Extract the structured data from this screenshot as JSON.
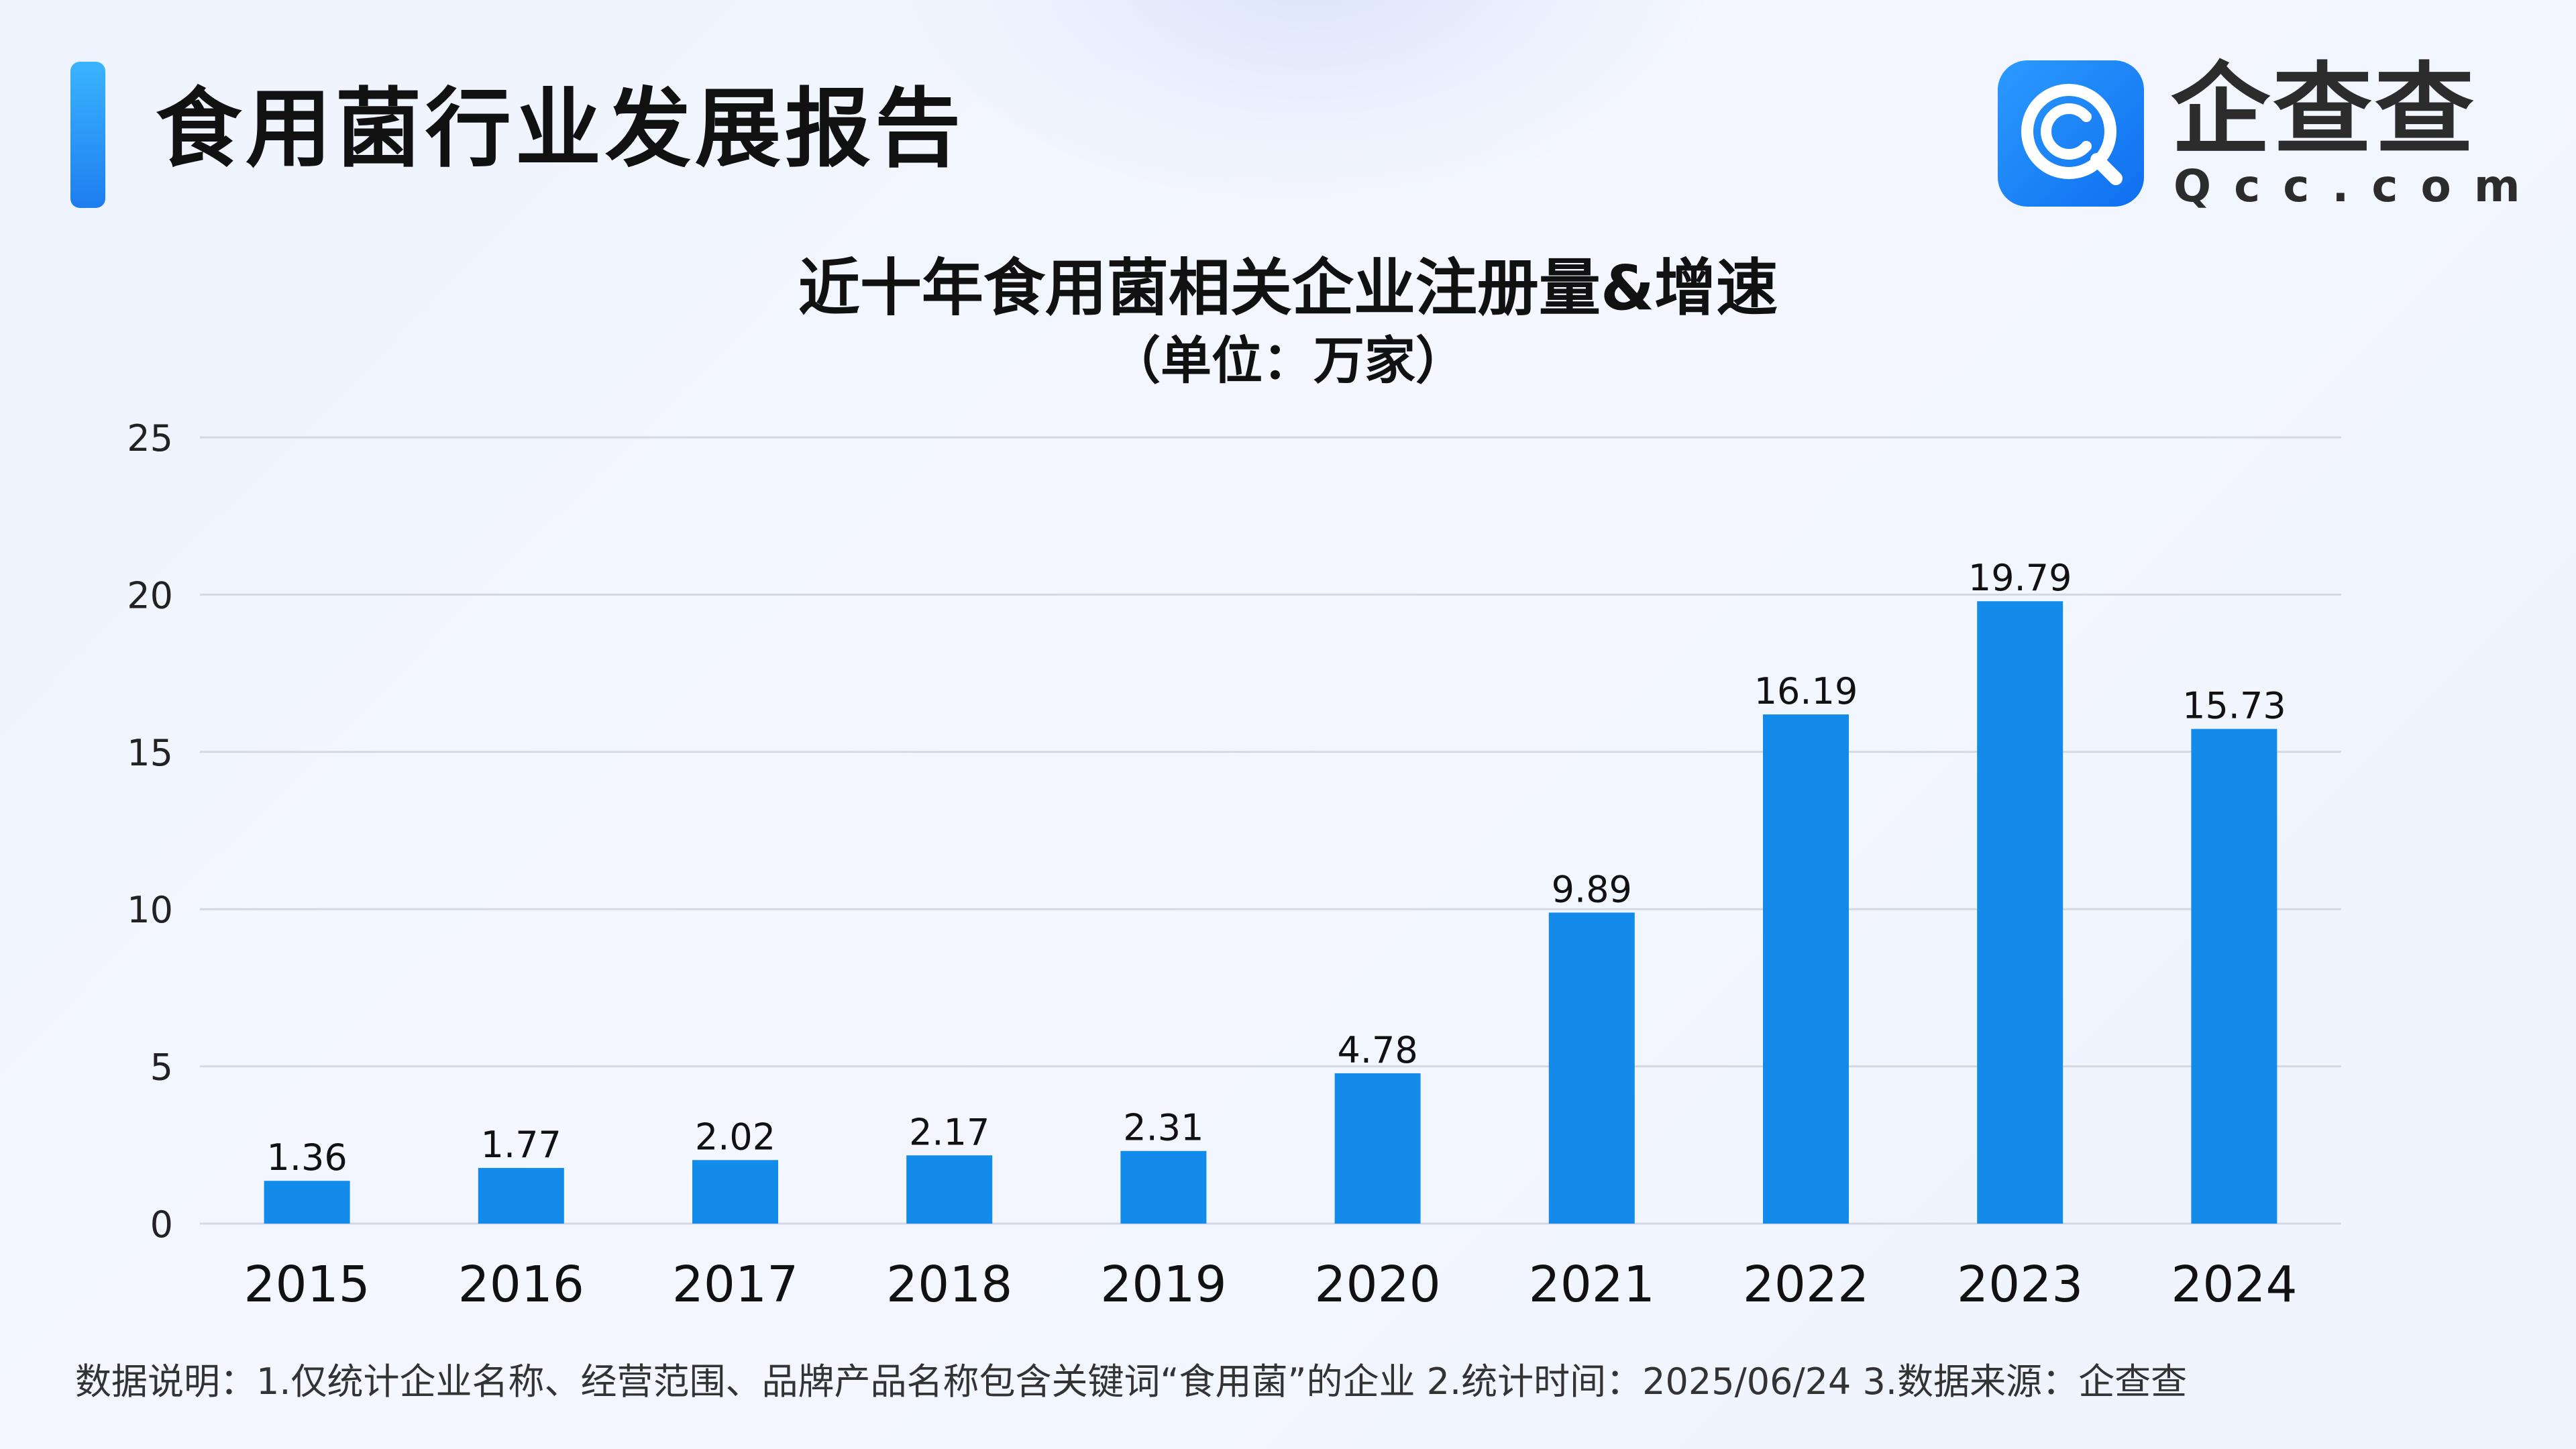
{
  "header": {
    "title": "食用菌行业发展报告"
  },
  "logo": {
    "name_cn": "企查查",
    "name_en": "Qcc.com"
  },
  "colors": {
    "bar": "#138bea",
    "grid": "#d3d8e3",
    "accent": "#1e7df0"
  },
  "chart_data": {
    "type": "bar",
    "title": "近十年食用菌相关企业注册量&增速",
    "subtitle": "（单位：万家）",
    "categories": [
      "2015",
      "2016",
      "2017",
      "2018",
      "2019",
      "2020",
      "2021",
      "2022",
      "2023",
      "2024"
    ],
    "values": [
      1.36,
      1.77,
      2.02,
      2.17,
      2.31,
      4.78,
      9.89,
      16.19,
      19.79,
      15.73
    ],
    "data_labels": [
      "1.36",
      "1.77",
      "2.02",
      "2.17",
      "2.31",
      "4.78",
      "9.89",
      "16.19",
      "19.79",
      "15.73"
    ],
    "ylim": [
      0,
      25
    ],
    "yticks": [
      0,
      5,
      10,
      15,
      20,
      25
    ],
    "grid": true,
    "legend": "none"
  },
  "footnote": "数据说明：1.仅统计企业名称、经营范围、品牌产品名称包含关键词“食用菌”的企业   2.统计时间：2025/06/24   3.数据来源：企查查"
}
